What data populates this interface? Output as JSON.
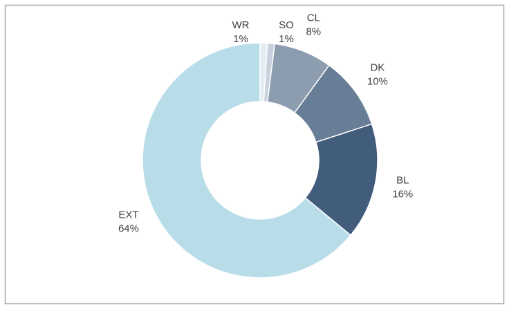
{
  "chart_data": {
    "type": "donut",
    "categories": [
      "WR",
      "SO",
      "CL",
      "DK",
      "BL",
      "EXT"
    ],
    "values": [
      1,
      1,
      8,
      10,
      16,
      64
    ],
    "value_labels": [
      "1%",
      "1%",
      "8%",
      "10%",
      "16%",
      "64%"
    ],
    "colors": [
      "#e4ebf3",
      "#c9d1dc",
      "#8c9db0",
      "#687d96",
      "#425c7c",
      "#b8dde8"
    ]
  }
}
